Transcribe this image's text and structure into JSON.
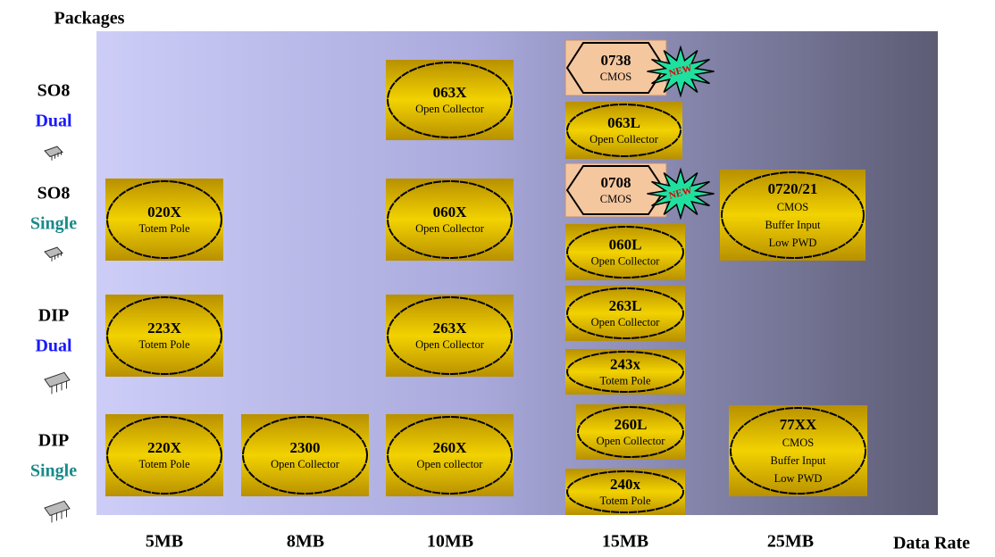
{
  "header": {
    "title": "Packages",
    "x_axis_title": "Data Rate"
  },
  "rows": [
    {
      "package": "SO8",
      "variant": "Dual"
    },
    {
      "package": "SO8",
      "variant": "Single"
    },
    {
      "package": "DIP",
      "variant": "Dual"
    },
    {
      "package": "DIP",
      "variant": "Single"
    }
  ],
  "columns": [
    "5MB",
    "8MB",
    "10MB",
    "15MB",
    "25MB"
  ],
  "products": [
    {
      "name": "063X",
      "lines": [
        "Open Collector"
      ]
    },
    {
      "name": "0738",
      "lines": [
        "CMOS"
      ],
      "badge": "NEW"
    },
    {
      "name": "063L",
      "lines": [
        "Open Collector"
      ]
    },
    {
      "name": "0708",
      "lines": [
        "CMOS"
      ],
      "badge": "NEW"
    },
    {
      "name": "060L",
      "lines": [
        "Open Collector"
      ]
    },
    {
      "name": "263L",
      "lines": [
        "Open Collector"
      ]
    },
    {
      "name": "243x",
      "lines": [
        "Totem Pole"
      ]
    },
    {
      "name": "260L",
      "lines": [
        "Open Collector"
      ]
    },
    {
      "name": "240x",
      "lines": [
        "Totem Pole"
      ]
    },
    {
      "name": "020X",
      "lines": [
        "Totem Pole"
      ]
    },
    {
      "name": "060X",
      "lines": [
        "Open Collector"
      ]
    },
    {
      "name": "0720/21",
      "lines": [
        "CMOS",
        "Buffer Input",
        "Low PWD"
      ]
    },
    {
      "name": "223X",
      "lines": [
        "Totem Pole"
      ]
    },
    {
      "name": "263X",
      "lines": [
        "Open Collector"
      ]
    },
    {
      "name": "220X",
      "lines": [
        "Totem Pole"
      ]
    },
    {
      "name": "2300",
      "lines": [
        "Open Collector"
      ]
    },
    {
      "name": "260X",
      "lines": [
        "Open collector"
      ]
    },
    {
      "name": "77XX",
      "lines": [
        "CMOS",
        "Buffer Input",
        "Low PWD"
      ]
    }
  ]
}
